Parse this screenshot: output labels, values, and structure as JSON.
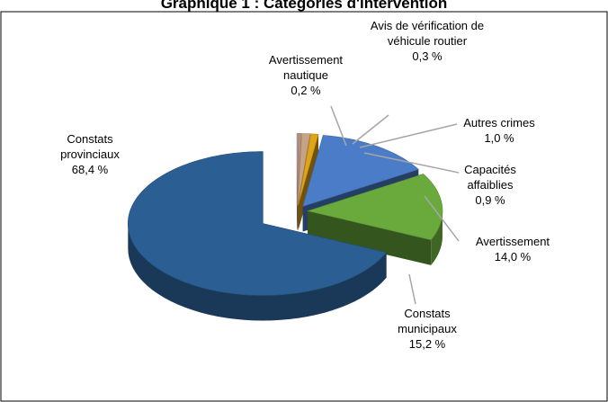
{
  "chart_data": {
    "type": "pie3d",
    "title": "Graphique 1 : Catégories d'intervention",
    "categories": [
      "Avertissement nautique",
      "Avis de vérification de véhicule routier",
      "Autres crimes",
      "Capacités affaiblies",
      "Avertissement",
      "Constats municipaux",
      "Constats provinciaux"
    ],
    "values": [
      0.2,
      0.3,
      1.0,
      0.9,
      14.0,
      15.2,
      68.4
    ],
    "value_labels": [
      "0,2 %",
      "0,3 %",
      "1,0 %",
      "0,9 %",
      "14,0 %",
      "15,2 %",
      "68,4 %"
    ],
    "colors": [
      "#a6a6a6",
      "#c8907c",
      "#c4a484",
      "#e0a418",
      "#4a7cc8",
      "#6aaa3c",
      "#2b5f93"
    ]
  }
}
